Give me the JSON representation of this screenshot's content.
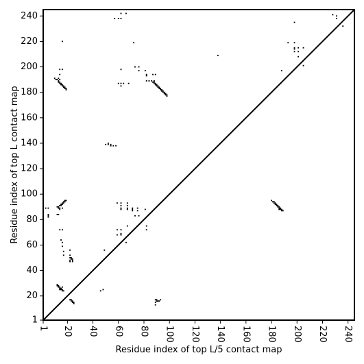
{
  "chart_data": {
    "type": "scatter",
    "title": "",
    "xlabel": "Residue index of top L/5 contact map",
    "ylabel": "Residue index of top L contact map",
    "xlim": [
      1,
      245
    ],
    "ylim": [
      1,
      245
    ],
    "x_ticks": [
      1,
      20,
      40,
      60,
      80,
      100,
      120,
      140,
      160,
      180,
      200,
      220,
      240
    ],
    "y_ticks": [
      1,
      20,
      40,
      60,
      80,
      100,
      120,
      140,
      160,
      180,
      200,
      220,
      240
    ],
    "x_tick_labels": [
      "1",
      "20",
      "40",
      "60",
      "80",
      "100",
      "120",
      "140",
      "160",
      "180",
      "200",
      "220",
      "240"
    ],
    "y_tick_labels": [
      "1",
      "20",
      "40",
      "60",
      "80",
      "100",
      "120",
      "140",
      "160",
      "180",
      "200",
      "220",
      "240"
    ],
    "grid": false,
    "legend": "none",
    "diagonal": [
      [
        1,
        1
      ],
      [
        245,
        245
      ]
    ],
    "marker_color": "#000000",
    "series": [
      {
        "values": [
          [
            10,
            191
          ],
          [
            11,
            190
          ],
          [
            12,
            190
          ],
          [
            13,
            189
          ],
          [
            13,
            188
          ],
          [
            14,
            188
          ],
          [
            14,
            187
          ],
          [
            15,
            187
          ],
          [
            15,
            186
          ],
          [
            16,
            186
          ],
          [
            16,
            185
          ],
          [
            17,
            185
          ],
          [
            17,
            184
          ],
          [
            18,
            184
          ],
          [
            18,
            183
          ],
          [
            19,
            183
          ],
          [
            19,
            182
          ],
          [
            14,
            194
          ],
          [
            14,
            198
          ],
          [
            16,
            198
          ],
          [
            16,
            220
          ],
          [
            14,
            190
          ],
          [
            13,
            191
          ],
          [
            57,
            238
          ],
          [
            60,
            238
          ],
          [
            62,
            238
          ],
          [
            62,
            242
          ],
          [
            66,
            242
          ],
          [
            72,
            219
          ],
          [
            60,
            187
          ],
          [
            62,
            187
          ],
          [
            62,
            185
          ],
          [
            64,
            187
          ],
          [
            68,
            187
          ],
          [
            62,
            198
          ],
          [
            73,
            200
          ],
          [
            76,
            200
          ],
          [
            76,
            197
          ],
          [
            81,
            197
          ],
          [
            82,
            194
          ],
          [
            82,
            193
          ],
          [
            82,
            189
          ],
          [
            84,
            189
          ],
          [
            87,
            194
          ],
          [
            89,
            194
          ],
          [
            88,
            189
          ],
          [
            86,
            189
          ],
          [
            87,
            188
          ],
          [
            88,
            188
          ],
          [
            88,
            187
          ],
          [
            89,
            187
          ],
          [
            89,
            186
          ],
          [
            90,
            186
          ],
          [
            90,
            185
          ],
          [
            91,
            185
          ],
          [
            91,
            184
          ],
          [
            92,
            184
          ],
          [
            92,
            183
          ],
          [
            93,
            183
          ],
          [
            93,
            182
          ],
          [
            94,
            182
          ],
          [
            94,
            181
          ],
          [
            95,
            181
          ],
          [
            95,
            180
          ],
          [
            96,
            180
          ],
          [
            96,
            179
          ],
          [
            97,
            179
          ],
          [
            97,
            178
          ],
          [
            98,
            178
          ],
          [
            98,
            177
          ],
          [
            138,
            209
          ],
          [
            188,
            197
          ],
          [
            198,
            219
          ],
          [
            198,
            235
          ],
          [
            198,
            215
          ],
          [
            198,
            214
          ],
          [
            198,
            212
          ],
          [
            201,
            215
          ],
          [
            201,
            212
          ],
          [
            201,
            208
          ],
          [
            205,
            215
          ],
          [
            205,
            201
          ],
          [
            193,
            219
          ],
          [
            228,
            241
          ],
          [
            231,
            240
          ],
          [
            231,
            238
          ],
          [
            236,
            232
          ],
          [
            52,
            140
          ],
          [
            52,
            139
          ],
          [
            54,
            139
          ],
          [
            54,
            138
          ],
          [
            56,
            138
          ],
          [
            58,
            138
          ],
          [
            50,
            139
          ],
          [
            12,
            90
          ],
          [
            13,
            90
          ],
          [
            13,
            89
          ],
          [
            14,
            89
          ],
          [
            14,
            91
          ],
          [
            15,
            91
          ],
          [
            15,
            92
          ],
          [
            16,
            92
          ],
          [
            16,
            93
          ],
          [
            17,
            93
          ],
          [
            17,
            94
          ],
          [
            18,
            94
          ],
          [
            18,
            95
          ],
          [
            19,
            95
          ],
          [
            14,
            88
          ],
          [
            16,
            89
          ],
          [
            3,
            89
          ],
          [
            5,
            89
          ],
          [
            5,
            84
          ],
          [
            5,
            83
          ],
          [
            5,
            82
          ],
          [
            12,
            84
          ],
          [
            13,
            84
          ],
          [
            14,
            72
          ],
          [
            16,
            72
          ],
          [
            15,
            64
          ],
          [
            16,
            62
          ],
          [
            16,
            59
          ],
          [
            17,
            55
          ],
          [
            17,
            52
          ],
          [
            22,
            56
          ],
          [
            22,
            52
          ],
          [
            22,
            50
          ],
          [
            23,
            50
          ],
          [
            23,
            49
          ],
          [
            24,
            49
          ],
          [
            24,
            48
          ],
          [
            22,
            48
          ],
          [
            22,
            47
          ],
          [
            24,
            47
          ],
          [
            12,
            29
          ],
          [
            12,
            28
          ],
          [
            13,
            28
          ],
          [
            13,
            27
          ],
          [
            14,
            27
          ],
          [
            14,
            26
          ],
          [
            15,
            26
          ],
          [
            15,
            25
          ],
          [
            16,
            25
          ],
          [
            16,
            24
          ],
          [
            17,
            24
          ],
          [
            14,
            25
          ],
          [
            16,
            27
          ],
          [
            22,
            17
          ],
          [
            23,
            17
          ],
          [
            23,
            16
          ],
          [
            24,
            16
          ],
          [
            24,
            15
          ],
          [
            25,
            15
          ],
          [
            25,
            14
          ],
          [
            46,
            24
          ],
          [
            48,
            25
          ],
          [
            49,
            56
          ],
          [
            59,
            93
          ],
          [
            62,
            93
          ],
          [
            62,
            91
          ],
          [
            62,
            89
          ],
          [
            62,
            88
          ],
          [
            67,
            93
          ],
          [
            67,
            91
          ],
          [
            67,
            89
          ],
          [
            67,
            88
          ],
          [
            71,
            89
          ],
          [
            71,
            88
          ],
          [
            71,
            87
          ],
          [
            75,
            89
          ],
          [
            75,
            87
          ],
          [
            73,
            83
          ],
          [
            76,
            83
          ],
          [
            81,
            88
          ],
          [
            82,
            75
          ],
          [
            82,
            72
          ],
          [
            59,
            72
          ],
          [
            62,
            72
          ],
          [
            59,
            68
          ],
          [
            62,
            68
          ],
          [
            62,
            69
          ],
          [
            67,
            75
          ],
          [
            66,
            62
          ],
          [
            89,
            17
          ],
          [
            90,
            17
          ],
          [
            90,
            16
          ],
          [
            91,
            16
          ],
          [
            92,
            16
          ],
          [
            93,
            17
          ],
          [
            89,
            15
          ],
          [
            89,
            13
          ],
          [
            180,
            95
          ],
          [
            181,
            94
          ],
          [
            182,
            94
          ],
          [
            182,
            93
          ],
          [
            183,
            93
          ],
          [
            183,
            92
          ],
          [
            184,
            92
          ],
          [
            184,
            91
          ],
          [
            185,
            91
          ],
          [
            185,
            90
          ],
          [
            186,
            90
          ],
          [
            186,
            89
          ],
          [
            187,
            89
          ],
          [
            187,
            88
          ],
          [
            188,
            88
          ],
          [
            188,
            87
          ],
          [
            189,
            87
          ],
          [
            186,
            88
          ]
        ]
      }
    ]
  }
}
